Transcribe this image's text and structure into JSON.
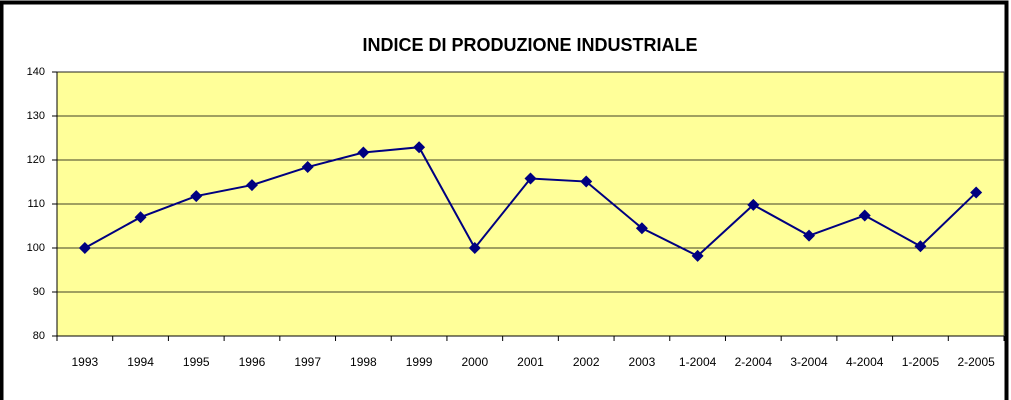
{
  "chart_data": {
    "type": "line",
    "title": "INDICE DI PRODUZIONE INDUSTRIALE",
    "categories": [
      "1993",
      "1994",
      "1995",
      "1996",
      "1997",
      "1998",
      "1999",
      "2000",
      "2001",
      "2002",
      "2003",
      "1-2004",
      "2-2004",
      "3-2004",
      "4-2004",
      "1-2005",
      "2-2005"
    ],
    "values": [
      100,
      107,
      111.8,
      114.3,
      118.4,
      121.7,
      122.9,
      100,
      115.8,
      115.1,
      104.5,
      98.2,
      109.8,
      102.8,
      107.4,
      100.4,
      112.6
    ],
    "color": "#000080",
    "ylim": [
      80,
      140
    ],
    "yticks": [
      80,
      90,
      100,
      110,
      120,
      130,
      140
    ],
    "grid": true
  }
}
